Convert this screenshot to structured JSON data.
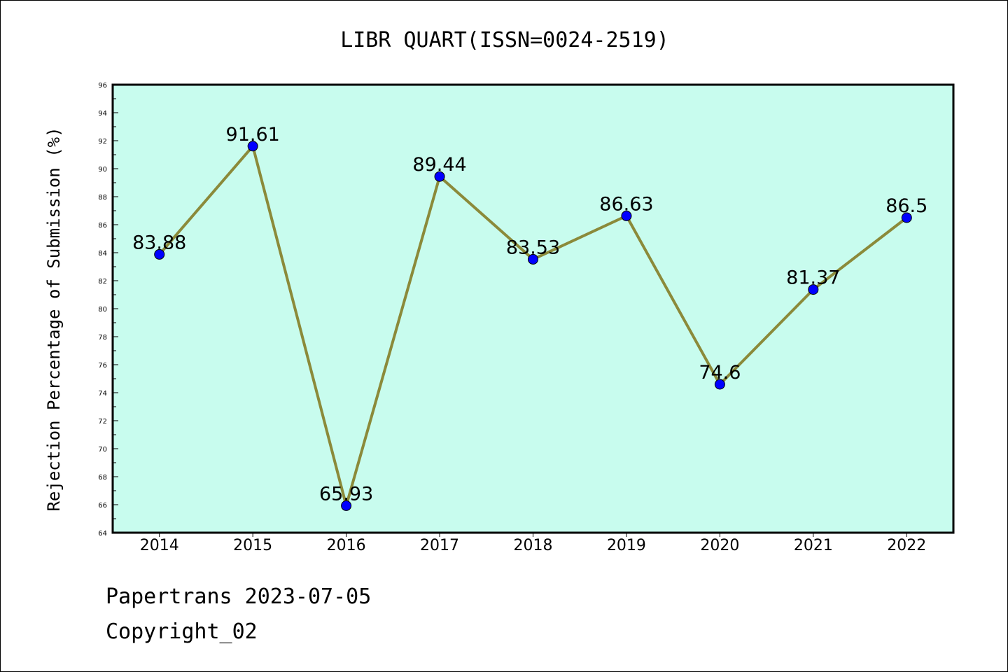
{
  "chart_data": {
    "type": "line",
    "title": "LIBR QUART(ISSN=0024-2519)",
    "xlabel": "",
    "ylabel": "Rejection Percentage of Submission (%)",
    "x": [
      "2014",
      "2015",
      "2016",
      "2017",
      "2018",
      "2019",
      "2020",
      "2021",
      "2022"
    ],
    "series": [
      {
        "values": [
          83.88,
          91.61,
          65.93,
          89.44,
          83.53,
          86.63,
          74.6,
          81.37,
          86.5
        ],
        "labels": [
          "83.88",
          "91.61",
          "65.93",
          "89.44",
          "83.53",
          "86.63",
          "74.6",
          "81.37",
          "86.5"
        ]
      }
    ],
    "ylim": [
      64,
      96
    ],
    "yticks": [
      "64",
      "66",
      "68",
      "70",
      "72",
      "74",
      "76",
      "78",
      "80",
      "82",
      "84",
      "86",
      "88",
      "90",
      "92",
      "94",
      "96"
    ],
    "grid": false,
    "colors": {
      "plot_background": "#c8fcee",
      "line": "#8b8a3a",
      "marker": "#0000ff"
    }
  },
  "footer": {
    "line1": "Papertrans 2023-07-05",
    "line2": "Copyright_02"
  }
}
